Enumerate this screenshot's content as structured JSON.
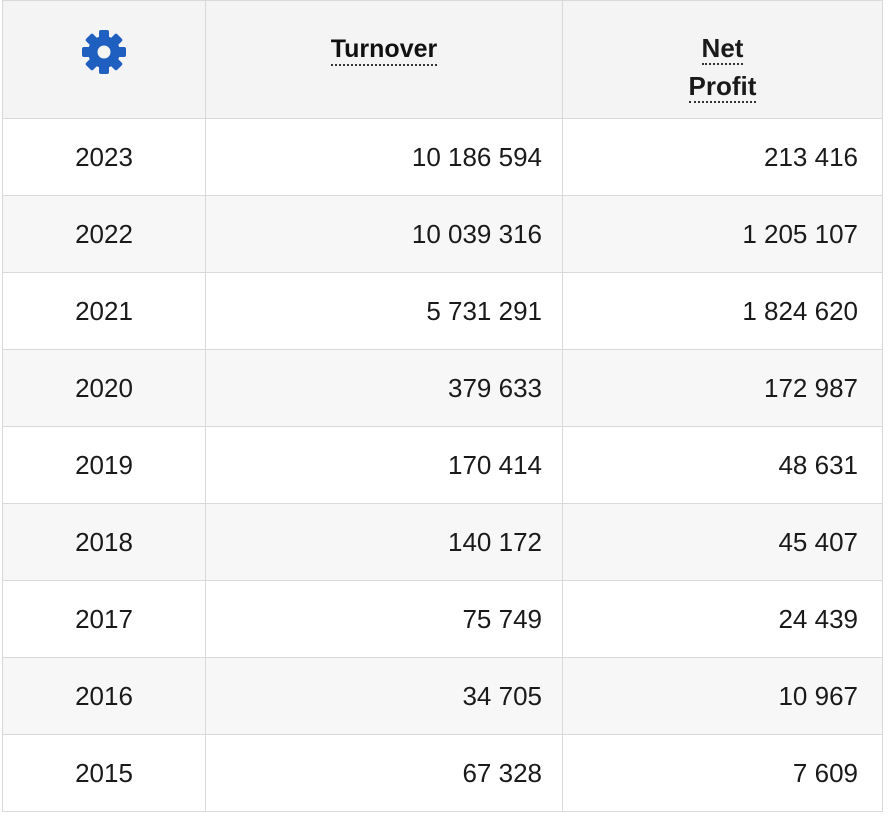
{
  "table": {
    "settings_icon": "gear-icon",
    "accent_color": "#1f5fbf",
    "headers": {
      "turnover": "Turnover",
      "net_profit_line1": "Net",
      "net_profit_line2": "Profit"
    },
    "rows": [
      {
        "year": "2023",
        "turnover": "10 186 594",
        "net_profit": "213 416"
      },
      {
        "year": "2022",
        "turnover": "10 039 316",
        "net_profit": "1 205 107"
      },
      {
        "year": "2021",
        "turnover": "5 731 291",
        "net_profit": "1 824 620"
      },
      {
        "year": "2020",
        "turnover": "379 633",
        "net_profit": "172 987"
      },
      {
        "year": "2019",
        "turnover": "170 414",
        "net_profit": "48 631"
      },
      {
        "year": "2018",
        "turnover": "140 172",
        "net_profit": "45 407"
      },
      {
        "year": "2017",
        "turnover": "75 749",
        "net_profit": "24 439"
      },
      {
        "year": "2016",
        "turnover": "34 705",
        "net_profit": "10 967"
      },
      {
        "year": "2015",
        "turnover": "67 328",
        "net_profit": "7 609"
      }
    ]
  }
}
